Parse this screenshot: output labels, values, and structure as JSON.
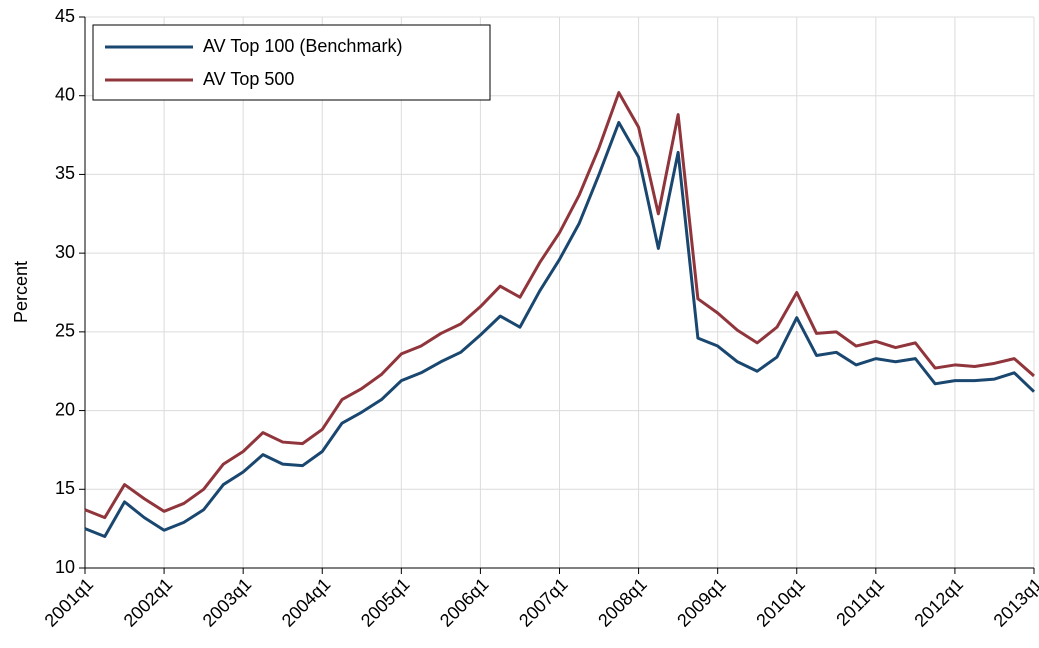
{
  "chart_data": {
    "type": "line",
    "y_label": "Percent",
    "categories": [
      "2001q1",
      null,
      null,
      null,
      "2002q1",
      null,
      null,
      null,
      "2003q1",
      null,
      null,
      null,
      "2004q1",
      null,
      null,
      null,
      "2005q1",
      null,
      null,
      null,
      "2006q1",
      null,
      null,
      null,
      "2007q1",
      null,
      null,
      null,
      "2008q1",
      null,
      null,
      null,
      "2009q1",
      null,
      null,
      null,
      "2010q1",
      null,
      null,
      null,
      "2011q1",
      null,
      null,
      null,
      "2012q1",
      null,
      null,
      null,
      "2013q1"
    ],
    "series": [
      {
        "name": "AV Top 100 (Benchmark)",
        "color": "#1a476f",
        "values": [
          12.5,
          12.0,
          14.2,
          13.2,
          12.4,
          12.9,
          13.7,
          15.3,
          16.1,
          17.2,
          16.6,
          16.5,
          17.4,
          19.2,
          19.9,
          20.7,
          21.9,
          22.4,
          23.1,
          23.7,
          24.8,
          26.0,
          25.3,
          27.6,
          29.6,
          31.9,
          35.0,
          38.3,
          36.1,
          30.3,
          36.4,
          24.6,
          24.1,
          23.1,
          22.5,
          23.4,
          25.9,
          23.5,
          23.7,
          22.9,
          23.3,
          23.1,
          23.3,
          21.7,
          21.9,
          21.9,
          22.0,
          22.4,
          21.2
        ]
      },
      {
        "name": "AV Top 500",
        "color": "#90353b",
        "values": [
          13.7,
          13.2,
          15.3,
          14.4,
          13.6,
          14.1,
          15.0,
          16.6,
          17.4,
          18.6,
          18.0,
          17.9,
          18.8,
          20.7,
          21.4,
          22.3,
          23.6,
          24.1,
          24.9,
          25.5,
          26.6,
          27.9,
          27.2,
          29.4,
          31.3,
          33.7,
          36.7,
          40.2,
          38.0,
          32.5,
          38.8,
          27.1,
          26.2,
          25.1,
          24.3,
          25.3,
          27.5,
          24.9,
          25.0,
          24.1,
          24.4,
          24.0,
          24.3,
          22.7,
          22.9,
          22.8,
          23.0,
          23.3,
          22.2
        ]
      }
    ],
    "ylim": [
      10,
      45
    ],
    "yticks": [
      10,
      15,
      20,
      25,
      30,
      35,
      40,
      45
    ],
    "grid": true,
    "legend": "top-left"
  }
}
